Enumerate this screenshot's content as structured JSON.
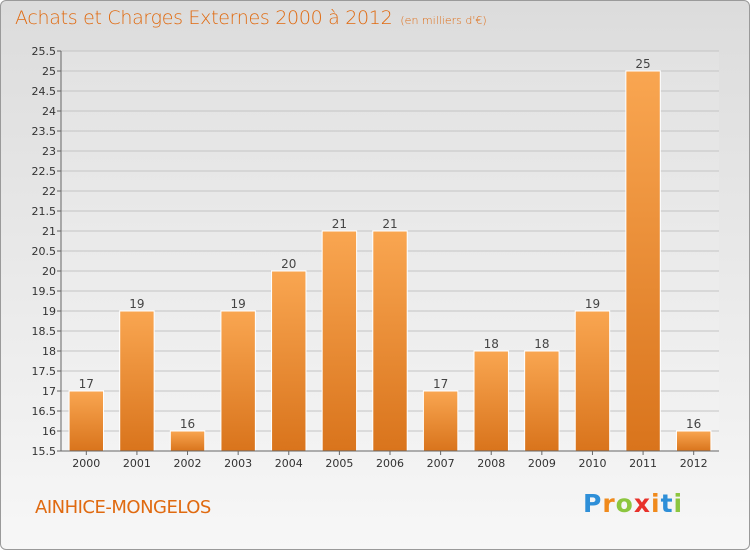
{
  "header": {
    "title": "Achats et Charges Externes 2000 à 2012",
    "subtitle": "(en milliers d'€)"
  },
  "footer": {
    "commune": "AINHICE-MONGELOS",
    "logo_letters": [
      "P",
      "r",
      "o",
      "x",
      "i",
      "t",
      "i"
    ],
    "logo_colors": [
      "#2e8fd8",
      "#f08a1c",
      "#8cc63f",
      "#e8312a",
      "#f08a1c",
      "#2e8fd8",
      "#8cc63f"
    ]
  },
  "colors": {
    "bar_light": "#f9a651",
    "bar_dark": "#d9741c",
    "title": "#e06a10"
  },
  "chart_data": {
    "type": "bar",
    "categories": [
      "2000",
      "2001",
      "2002",
      "2003",
      "2004",
      "2005",
      "2006",
      "2007",
      "2008",
      "2009",
      "2010",
      "2011",
      "2012"
    ],
    "values": [
      17,
      19,
      16,
      19,
      20,
      21,
      21,
      17,
      18,
      18,
      19,
      25,
      16
    ],
    "value_labels": [
      "17",
      "19",
      "16",
      "19",
      "20",
      "21",
      "21",
      "17",
      "18",
      "18",
      "19",
      "25",
      "16"
    ],
    "title": "Achats et Charges Externes 2000 à 2012",
    "xlabel": "",
    "ylabel": "",
    "ylim": [
      15.5,
      25.5
    ],
    "yticks": [
      "15.5",
      "16",
      "16.5",
      "17",
      "17.5",
      "18",
      "18.5",
      "19",
      "19.5",
      "20",
      "20.5",
      "21",
      "21.5",
      "22",
      "22.5",
      "23",
      "23.5",
      "24",
      "24.5",
      "25",
      "25.5"
    ],
    "grid": true,
    "legend": "none"
  }
}
